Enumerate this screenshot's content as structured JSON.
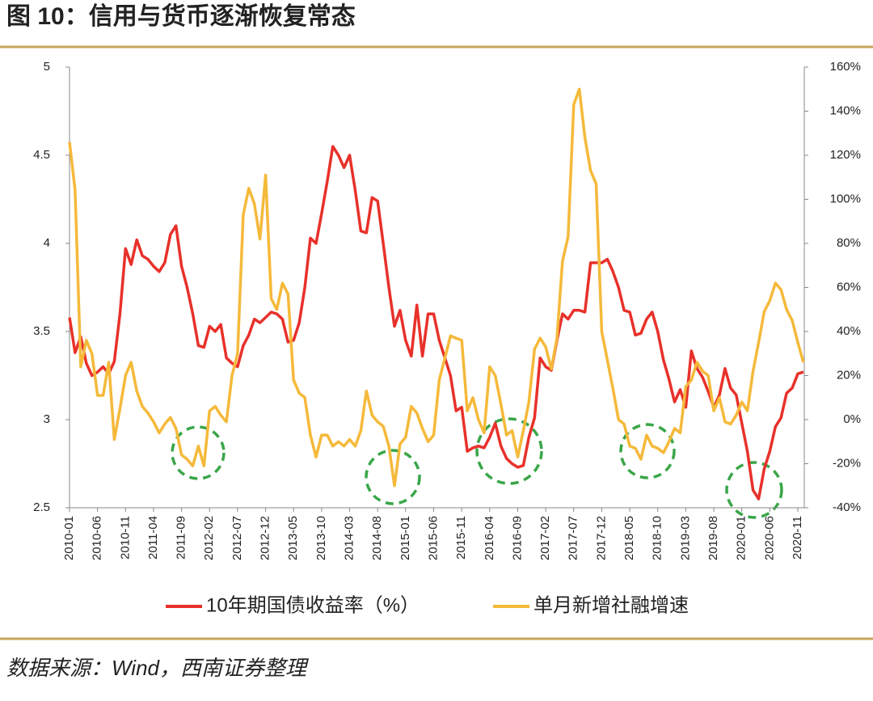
{
  "chart_data": {
    "type": "line",
    "title": "图 10：信用与货币逐渐恢复常态",
    "source": "数据来源：Wind，西南证券整理",
    "categories": [
      "2010-01",
      null,
      null,
      null,
      null,
      "2010-06",
      null,
      null,
      null,
      null,
      "2010-11",
      null,
      null,
      null,
      null,
      "2011-04",
      null,
      null,
      null,
      null,
      "2011-09",
      null,
      null,
      null,
      null,
      "2012-02",
      null,
      null,
      null,
      null,
      "2012-07",
      null,
      null,
      null,
      null,
      "2012-12",
      null,
      null,
      null,
      null,
      "2013-05",
      null,
      null,
      null,
      null,
      "2013-10",
      null,
      null,
      null,
      null,
      "2014-03",
      null,
      null,
      null,
      null,
      "2014-08",
      null,
      null,
      null,
      null,
      "2015-01",
      null,
      null,
      null,
      null,
      "2015-06",
      null,
      null,
      null,
      null,
      "2015-11",
      null,
      null,
      null,
      null,
      "2016-04",
      null,
      null,
      null,
      null,
      "2016-09",
      null,
      null,
      null,
      null,
      "2017-02",
      null,
      null,
      null,
      null,
      "2017-07",
      null,
      null,
      null,
      null,
      "2017-12",
      null,
      null,
      null,
      null,
      "2018-05",
      null,
      null,
      null,
      null,
      "2018-10",
      null,
      null,
      null,
      null,
      "2019-03",
      null,
      null,
      null,
      null,
      "2019-08",
      null,
      null,
      null,
      null,
      "2020-01",
      null,
      null,
      null,
      null,
      "2020-06",
      null,
      null,
      null,
      null,
      "2020-11",
      null
    ],
    "series": [
      {
        "name": "10年期国债收益率（%）",
        "color": "#e8312a",
        "values": [
          3.58,
          3.38,
          3.47,
          3.32,
          3.25,
          3.27,
          3.3,
          3.26,
          3.33,
          3.6,
          3.97,
          3.88,
          4.02,
          3.93,
          3.91,
          3.87,
          3.84,
          3.89,
          4.05,
          4.1,
          3.87,
          3.75,
          3.6,
          3.42,
          3.41,
          3.53,
          3.5,
          3.54,
          3.35,
          3.32,
          3.3,
          3.42,
          3.48,
          3.57,
          3.55,
          3.58,
          3.61,
          3.6,
          3.57,
          3.44,
          3.45,
          3.55,
          3.75,
          4.03,
          4.0,
          4.17,
          4.35,
          4.55,
          4.5,
          4.43,
          4.5,
          4.3,
          4.07,
          4.06,
          4.26,
          4.24,
          4.0,
          3.75,
          3.53,
          3.62,
          3.45,
          3.36,
          3.65,
          3.36,
          3.6,
          3.6,
          3.45,
          3.35,
          3.25,
          3.05,
          3.07,
          2.82,
          2.84,
          2.85,
          2.84,
          2.9,
          2.98,
          2.85,
          2.78,
          2.75,
          2.73,
          2.74,
          2.9,
          3.01,
          3.35,
          3.3,
          3.28,
          3.45,
          3.6,
          3.57,
          3.62,
          3.62,
          3.61,
          3.89,
          3.89,
          3.89,
          3.91,
          3.84,
          3.75,
          3.62,
          3.61,
          3.48,
          3.49,
          3.57,
          3.61,
          3.5,
          3.34,
          3.23,
          3.1,
          3.17,
          3.07,
          3.39,
          3.29,
          3.24,
          3.16,
          3.07,
          3.14,
          3.29,
          3.18,
          3.14,
          2.98,
          2.82,
          2.6,
          2.55,
          2.72,
          2.82,
          2.96,
          3.01,
          3.15,
          3.18,
          3.26,
          3.27
        ]
      },
      {
        "name": "单月新增社融增速",
        "color": "#f5b93a",
        "axis": "y2",
        "values": [
          126,
          104,
          24,
          36,
          30,
          11,
          11,
          26,
          -9,
          5,
          20,
          26,
          13,
          6,
          3,
          -1,
          -6,
          -2,
          1,
          -4,
          -16,
          -18,
          -21,
          -12,
          -21,
          4,
          6,
          2,
          -1,
          20,
          30,
          93,
          105,
          98,
          82,
          111,
          55,
          50,
          62,
          57,
          18,
          12,
          10,
          -7,
          -17,
          -7,
          -7,
          -12,
          -10,
          -12,
          -9,
          -12,
          -5,
          13,
          2,
          -1,
          -3,
          -12,
          -30,
          -11,
          -8,
          6,
          3,
          -4,
          -10,
          -7,
          18,
          28,
          38,
          37,
          36,
          4,
          10,
          0,
          -6,
          24,
          20,
          7,
          -7,
          -5,
          -17,
          -5,
          8,
          32,
          37,
          33,
          23,
          37,
          72,
          83,
          143,
          150,
          128,
          113,
          107,
          40,
          27,
          14,
          0,
          -2,
          -12,
          -13,
          -18,
          -7,
          -12,
          -13,
          -15,
          -10,
          -4,
          -6,
          15,
          18,
          26,
          22,
          20,
          4,
          10,
          -1,
          -2,
          2,
          8,
          4,
          22,
          35,
          49,
          54,
          62,
          59,
          50,
          45,
          35,
          26
        ]
      }
    ],
    "ylim": [
      2.5,
      5
    ],
    "yticks": [
      2.5,
      3,
      3.5,
      4,
      4.5,
      5
    ],
    "y2lim": [
      -40,
      160
    ],
    "y2ticks": [
      {
        "value": -40,
        "label": "-40%"
      },
      {
        "value": -20,
        "label": "-20%"
      },
      {
        "value": 0,
        "label": "0%"
      },
      {
        "value": 20,
        "label": "20%"
      },
      {
        "value": 40,
        "label": "40%"
      },
      {
        "value": 60,
        "label": "60%"
      },
      {
        "value": 80,
        "label": "80%"
      },
      {
        "value": 100,
        "label": "100%"
      },
      {
        "value": 120,
        "label": "120%"
      },
      {
        "value": 140,
        "label": "140%"
      },
      {
        "value": 160,
        "label": "160%"
      }
    ],
    "grid": false,
    "legend": "bottom"
  }
}
